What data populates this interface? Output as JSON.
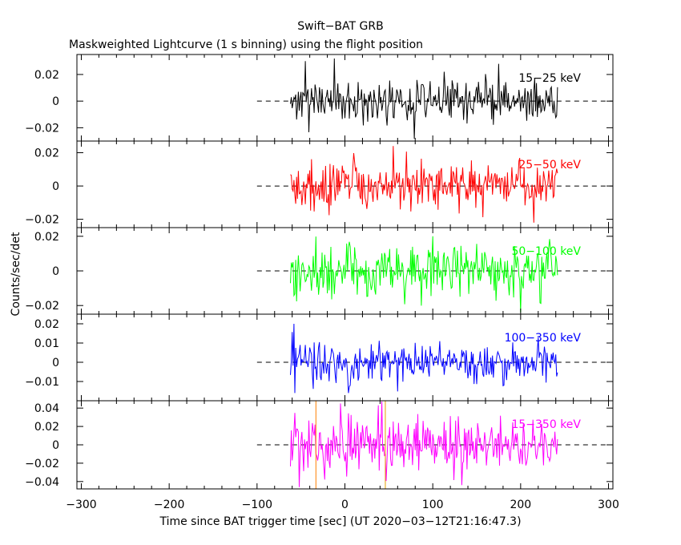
{
  "title": "Swift−BAT GRB",
  "subtitle": "Maskweighted Lightcurve (1 s binning) using the flight position",
  "xlabel": "Time since BAT trigger time [sec] (UT 2020−03−12T21:16:47.3)",
  "ylabel": "Counts/sec/det",
  "chart_data": {
    "type": "line",
    "xlim": [
      -305,
      305
    ],
    "x_ticks": [
      -300,
      -200,
      -100,
      0,
      100,
      200,
      300
    ],
    "x_tick_labels": [
      "−300",
      "−200",
      "−100",
      "0",
      "100",
      "200",
      "300"
    ],
    "data_range": [
      -62,
      242
    ],
    "zero_line_range": [
      -100,
      305
    ],
    "grid": false,
    "vertical_markers": [
      {
        "x": -33,
        "color": "#ff8000"
      },
      {
        "x": 46,
        "color": "#e8a000"
      }
    ],
    "panels": [
      {
        "name": "15−25 keV",
        "color": "#000000",
        "ylim": [
          -0.03,
          0.035
        ],
        "y_ticks": [
          -0.02,
          0,
          0.02
        ],
        "y_tick_labels": [
          "−0.02",
          "0",
          "0.02"
        ],
        "noise_sigma": 0.0075,
        "spikes": [
          {
            "x": -12,
            "value": 0.032
          },
          {
            "x": -45,
            "value": 0.03
          },
          {
            "x": 175,
            "value": 0.028
          }
        ]
      },
      {
        "name": "25−50 keV",
        "color": "#ff0000",
        "ylim": [
          -0.025,
          0.027
        ],
        "y_ticks": [
          -0.02,
          0,
          0.02
        ],
        "y_tick_labels": [
          "−0.02",
          "0",
          "0.02"
        ],
        "noise_sigma": 0.0075,
        "spikes": [
          {
            "x": 55,
            "value": 0.024
          },
          {
            "x": 215,
            "value": -0.022
          }
        ]
      },
      {
        "name": "50−100 keV",
        "color": "#00ff00",
        "ylim": [
          -0.025,
          0.025
        ],
        "y_ticks": [
          -0.02,
          0,
          0.02
        ],
        "y_tick_labels": [
          "−0.02",
          "0",
          "0.02"
        ],
        "noise_sigma": 0.0075,
        "spikes": [
          {
            "x": 200,
            "value": -0.024
          },
          {
            "x": 100,
            "value": 0.02
          }
        ]
      },
      {
        "name": "100−350 keV",
        "color": "#0000ff",
        "ylim": [
          -0.02,
          0.025
        ],
        "y_ticks": [
          -0.01,
          0,
          0.01,
          0.02
        ],
        "y_tick_labels": [
          "−0.01",
          "0",
          "0.01",
          "0.02"
        ],
        "noise_sigma": 0.005,
        "spikes": [
          {
            "x": -58,
            "value": 0.02
          },
          {
            "x": -57,
            "value": -0.016
          }
        ]
      },
      {
        "name": "15−350 keV",
        "color": "#ff00ff",
        "ylim": [
          -0.048,
          0.048
        ],
        "y_ticks": [
          -0.04,
          -0.02,
          0,
          0.02,
          0.04
        ],
        "y_tick_labels": [
          "−0.04",
          "−0.02",
          "0",
          "0.02",
          "0.04"
        ],
        "noise_sigma": 0.014,
        "spikes": [
          {
            "x": -52,
            "value": -0.046
          },
          {
            "x": -5,
            "value": 0.045
          }
        ]
      }
    ]
  }
}
